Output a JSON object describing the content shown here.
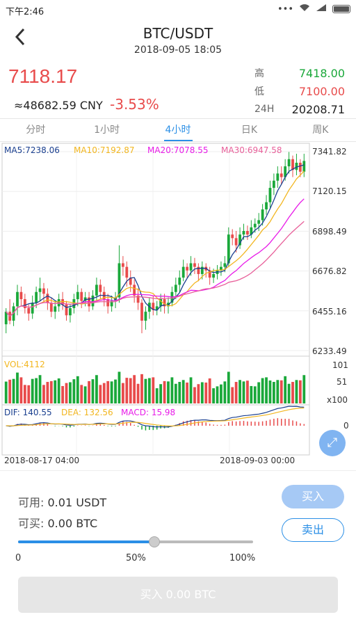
{
  "status": {
    "time": "下午2:46",
    "icons": [
      "signal-dots-icon",
      "wifi-icon",
      "cell-signal-icon",
      "battery-icon"
    ]
  },
  "nav": {
    "title": "BTC/USDT",
    "datetime": "2018-09-05 18:05"
  },
  "ticker": {
    "last": "7118.17",
    "cny": "≈48682.59 CNY",
    "change": "-3.53%",
    "high_label": "高",
    "high": "7418.00",
    "low_label": "低",
    "low": "7100.00",
    "vol_label": "24H",
    "vol": "20208.71"
  },
  "tabs": [
    {
      "label": "分时"
    },
    {
      "label": "1小时"
    },
    {
      "label": "4小时",
      "active": true
    },
    {
      "label": "日K"
    },
    {
      "label": "周K"
    }
  ],
  "ma": {
    "ma5": "MA5:7238.06",
    "ma10": "MA10:7192.87",
    "ma20": "MA20:7078.55",
    "ma30": "MA30:6947.58"
  },
  "price_axis": [
    "7341.82",
    "7120.15",
    "6898.49",
    "6676.82",
    "6455.16",
    "6233.49"
  ],
  "vol_text": "VOL:4112",
  "vol_axis": [
    "101",
    "51",
    "x100"
  ],
  "macd": {
    "dif": "DIF: 140.55",
    "dea": "DEA: 132.56",
    "macd": "MACD: 15.98",
    "zero": "0"
  },
  "time_axis": {
    "left": "2018-08-17 04:00",
    "right": "2018-09-03 00:00"
  },
  "colors": {
    "up": "#1aa83a",
    "down": "#e84b4b",
    "ma5": "#1a3f8f",
    "ma10": "#f2b61f",
    "ma20": "#e81be8",
    "ma30": "#e8609a",
    "accent": "#2b8fe6"
  },
  "order": {
    "avail_label": "可用:",
    "avail_value": "0.01",
    "avail_unit": "USDT",
    "canbuy_label": "可买:",
    "canbuy_value": "0.00",
    "canbuy_unit": "BTC",
    "buy_label": "买入",
    "sell_label": "卖出",
    "slider_value": 0.58,
    "slider_labels": [
      "0",
      "50%",
      "100%"
    ],
    "submit_label": "买入 0.00 BTC"
  },
  "chart_data": {
    "type": "candlestick",
    "title": "",
    "ylim": [
      6233.49,
      7341.82
    ],
    "yticks": [
      7341.82,
      7120.15,
      6898.49,
      6676.82,
      6455.16,
      6233.49
    ],
    "x_start": "2018-08-17 04:00",
    "x_end": "2018-09-03 00:00",
    "candles": [
      [
        6380,
        6450,
        6330,
        6470
      ],
      [
        6450,
        6400,
        6380,
        6520
      ],
      [
        6400,
        6480,
        6370,
        6500
      ],
      [
        6480,
        6560,
        6430,
        6600
      ],
      [
        6560,
        6520,
        6480,
        6590
      ],
      [
        6520,
        6470,
        6440,
        6550
      ],
      [
        6470,
        6440,
        6400,
        6490
      ],
      [
        6440,
        6500,
        6410,
        6540
      ],
      [
        6500,
        6560,
        6470,
        6590
      ],
      [
        6560,
        6580,
        6510,
        6640
      ],
      [
        6580,
        6550,
        6500,
        6610
      ],
      [
        6550,
        6500,
        6460,
        6580
      ],
      [
        6500,
        6450,
        6420,
        6530
      ],
      [
        6450,
        6480,
        6410,
        6510
      ],
      [
        6480,
        6520,
        6450,
        6550
      ],
      [
        6520,
        6490,
        6460,
        6560
      ],
      [
        6490,
        6430,
        6400,
        6510
      ],
      [
        6430,
        6470,
        6390,
        6490
      ],
      [
        6470,
        6520,
        6440,
        6550
      ],
      [
        6520,
        6560,
        6480,
        6600
      ],
      [
        6560,
        6510,
        6470,
        6580
      ],
      [
        6510,
        6530,
        6480,
        6560
      ],
      [
        6530,
        6480,
        6450,
        6560
      ],
      [
        6480,
        6540,
        6460,
        6570
      ],
      [
        6540,
        6600,
        6510,
        6640
      ],
      [
        6600,
        6560,
        6520,
        6630
      ],
      [
        6560,
        6520,
        6480,
        6590
      ],
      [
        6520,
        6480,
        6440,
        6550
      ],
      [
        6480,
        6510,
        6450,
        6540
      ],
      [
        6510,
        6530,
        6470,
        6560
      ],
      [
        6530,
        6720,
        6500,
        6820
      ],
      [
        6720,
        6700,
        6650,
        6760
      ],
      [
        6700,
        6640,
        6590,
        6730
      ],
      [
        6640,
        6600,
        6560,
        6680
      ],
      [
        6600,
        6540,
        6500,
        6630
      ],
      [
        6540,
        6500,
        6460,
        6580
      ],
      [
        6500,
        6400,
        6330,
        6520
      ],
      [
        6400,
        6450,
        6350,
        6480
      ],
      [
        6450,
        6500,
        6410,
        6530
      ],
      [
        6500,
        6460,
        6430,
        6540
      ],
      [
        6460,
        6480,
        6430,
        6510
      ],
      [
        6480,
        6520,
        6450,
        6550
      ],
      [
        6520,
        6480,
        6440,
        6550
      ],
      [
        6480,
        6500,
        6440,
        6530
      ],
      [
        6500,
        6560,
        6480,
        6590
      ],
      [
        6560,
        6600,
        6520,
        6640
      ],
      [
        6600,
        6640,
        6560,
        6680
      ],
      [
        6640,
        6700,
        6620,
        6740
      ],
      [
        6700,
        6680,
        6640,
        6720
      ],
      [
        6680,
        6720,
        6650,
        6760
      ],
      [
        6720,
        6700,
        6660,
        6750
      ],
      [
        6700,
        6660,
        6620,
        6720
      ],
      [
        6660,
        6700,
        6630,
        6730
      ],
      [
        6700,
        6680,
        6640,
        6720
      ],
      [
        6680,
        6640,
        6600,
        6700
      ],
      [
        6640,
        6660,
        6610,
        6690
      ],
      [
        6660,
        6680,
        6630,
        6710
      ],
      [
        6680,
        6700,
        6650,
        6730
      ],
      [
        6700,
        6720,
        6670,
        6760
      ],
      [
        6720,
        6880,
        6700,
        6920
      ],
      [
        6880,
        6860,
        6820,
        6910
      ],
      [
        6860,
        6820,
        6780,
        6900
      ],
      [
        6820,
        6880,
        6800,
        6920
      ],
      [
        6880,
        6900,
        6850,
        6940
      ],
      [
        6900,
        6880,
        6850,
        6930
      ],
      [
        6880,
        6920,
        6860,
        6960
      ],
      [
        6920,
        6940,
        6890,
        6970
      ],
      [
        6940,
        6960,
        6900,
        7000
      ],
      [
        6960,
        7020,
        6930,
        7050
      ],
      [
        7020,
        7060,
        6990,
        7100
      ],
      [
        7060,
        7140,
        7030,
        7180
      ],
      [
        7140,
        7180,
        7100,
        7220
      ],
      [
        7180,
        7220,
        7140,
        7260
      ],
      [
        7220,
        7200,
        7160,
        7260
      ],
      [
        7200,
        7260,
        7180,
        7300
      ],
      [
        7260,
        7300,
        7220,
        7340
      ],
      [
        7300,
        7240,
        7200,
        7320
      ],
      [
        7240,
        7280,
        7210,
        7330
      ],
      [
        7280,
        7230,
        7200,
        7300
      ],
      [
        7230,
        7290,
        7200,
        7330
      ]
    ],
    "volume_ylim": [
      0,
      101
    ],
    "volume_unit": "x100",
    "macd_values": {
      "dif": 140.55,
      "dea": 132.56,
      "macd": 15.98
    }
  }
}
